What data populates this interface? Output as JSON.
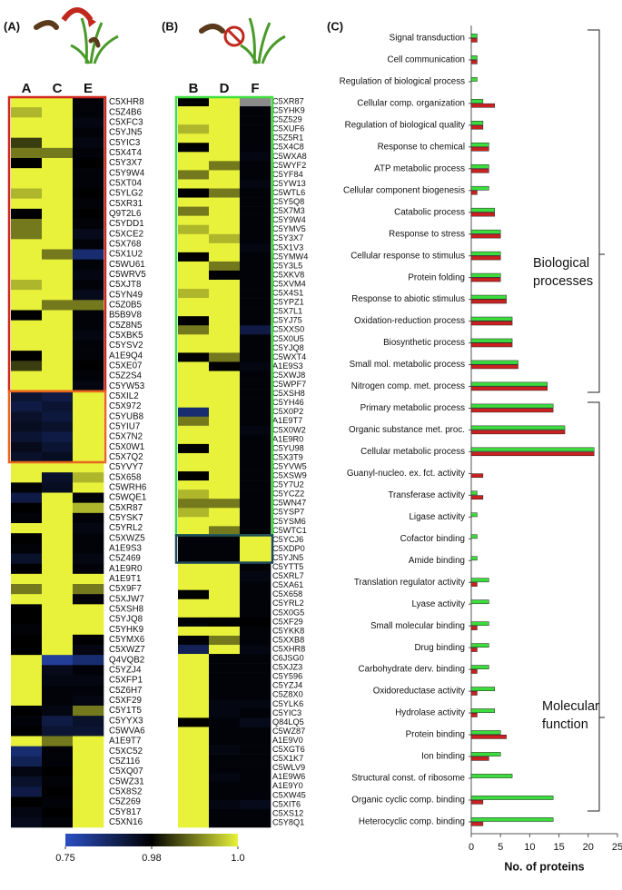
{
  "chart_data": [
    {
      "type": "heatmap",
      "panel": "(A)",
      "columns": [
        "A",
        "C",
        "E"
      ],
      "rows": [
        "C5XHR8",
        "C5Z4B6",
        "C5XFC3",
        "C5YJN5",
        "C5YIC3",
        "C5X4T4",
        "C5Y3X7",
        "C5Y9W4",
        "C5XT04",
        "C5YLG2",
        "C5XR31",
        "Q9T2L6",
        "C5YDD1",
        "C5XCE2",
        "C5X768",
        "C5X1U2",
        "C5WU61",
        "C5WRV5",
        "C5XJT8",
        "C5YN49",
        "C5Z0B5",
        "B5B9V8",
        "C5Z8N5",
        "C5XBK5",
        "C5YSV2",
        "A1E9Q4",
        "C5XE07",
        "C5Z2S4",
        "C5YW53",
        "C5XIL2",
        "C5X972",
        "C5YUB8",
        "C5YIU7",
        "C5X7N2",
        "C5X0W1",
        "C5X7Q2",
        "C5YVY7",
        "C5X658",
        "C5WRH6",
        "C5WQE1",
        "C5XR87",
        "C5YSK7",
        "C5YRL2",
        "C5XWZ5",
        "A1E9S3",
        "C5Z469",
        "A1E9R0",
        "A1E9T1",
        "C5X9F7",
        "C5XJW7",
        "C5XSH8",
        "C5YJQ8",
        "C5YHK9",
        "C5YMX6",
        "C5XWZ7",
        "Q4VQB2",
        "C5YZJ4",
        "C5XFP1",
        "C5Z6H7",
        "C5XF29",
        "C5Y1T5",
        "C5YYX3",
        "C5WVA6",
        "A1E9T7",
        "C5XC52",
        "C5Z116",
        "C5XQ07",
        "C5WZ31",
        "C5X8S2",
        "C5Z269",
        "C5Y817",
        "C5XN16"
      ],
      "values": [
        [
          1,
          0.995,
          1,
          1,
          0.985,
          0.99,
          0.98,
          1,
          1,
          0.995,
          1,
          0.98,
          0.99,
          0.99,
          1,
          1,
          1,
          1,
          0.995,
          1,
          1,
          0.98,
          1,
          1,
          1,
          0.98,
          0.985,
          1,
          1,
          0.92,
          0.9,
          0.93,
          0.94,
          0.92,
          0.95,
          0.93,
          1,
          1,
          0.97,
          0.9,
          0.98,
          0.97,
          1,
          0.98,
          0.97,
          0.93,
          0.98,
          1,
          0.99,
          1,
          0.98,
          0.98,
          0.97,
          0.98,
          0.98,
          1,
          1,
          1,
          1,
          1,
          0.98,
          0.97,
          0.98,
          1,
          0.85,
          0.88,
          0.96,
          0.93,
          0.9,
          0.98,
          0.96,
          0.95
        ],
        [
          1,
          1,
          1,
          1,
          1,
          0.99,
          1,
          1,
          1,
          1,
          1,
          1,
          1,
          1,
          1,
          0.99,
          1,
          1,
          1,
          1,
          0.99,
          1,
          1,
          1,
          1,
          1,
          1,
          1,
          1,
          0.9,
          0.92,
          0.91,
          0.93,
          0.9,
          0.92,
          0.94,
          1,
          0.93,
          0.94,
          1,
          1,
          1,
          1,
          1,
          1,
          1,
          1,
          1,
          1,
          1,
          1,
          1,
          1,
          1,
          1,
          0.8,
          0.95,
          0.96,
          0.97,
          0.97,
          0.96,
          0.9,
          0.92,
          0.99,
          0.97,
          0.97,
          0.98,
          0.97,
          0.98,
          0.97,
          0.98,
          0.97
        ],
        [
          0.97,
          0.97,
          0.96,
          0.97,
          0.96,
          0.97,
          0.98,
          0.97,
          0.97,
          0.98,
          0.97,
          0.98,
          0.97,
          0.95,
          0.97,
          0.85,
          0.97,
          0.96,
          0.97,
          0.95,
          0.99,
          0.97,
          0.97,
          0.96,
          0.97,
          0.97,
          0.98,
          0.97,
          0.96,
          1,
          1,
          1,
          1,
          1,
          1,
          1,
          1,
          0.995,
          1,
          0.97,
          0.995,
          0.97,
          0.96,
          0.97,
          0.97,
          0.96,
          0.97,
          1,
          0.99,
          0.97,
          1,
          1,
          1,
          0.98,
          0.96,
          0.85,
          0.97,
          0.96,
          0.97,
          0.96,
          0.99,
          0.93,
          0.92,
          1,
          1,
          1,
          1,
          1,
          1,
          1,
          1,
          1
        ]
      ],
      "colorbar": {
        "ticks": [
          0.75,
          0.98,
          {
            "value": 1,
            "label": "1.0"
          }
        ],
        "colors": [
          "#2b4fc4",
          "#000000",
          "#e8f23a"
        ]
      }
    },
    {
      "type": "heatmap",
      "panel": "(B)",
      "columns": [
        "B",
        "D",
        "F"
      ],
      "rows": [
        "C5XR87",
        "C5YHK9",
        "C5Z529",
        "C5XUF6",
        "C5Z5R1",
        "C5X4C8",
        "C5WXA8",
        "C5WYF2",
        "C5YF84",
        "C5YW13",
        "C5WTL6",
        "C5Y5Q8",
        "C5X7M3",
        "C5Y9W4",
        "C5YMV5",
        "C5Y3X7",
        "C5X1V3",
        "C5YMW4",
        "C5Y3L5",
        "C5XKV8",
        "C5XVM4",
        "C5X4S1",
        "C5YPZ1",
        "C5X7L1",
        "C5YJ75",
        "C5XXS0",
        "C5X0U5",
        "C5YJQ8",
        "C5WXT4",
        "A1E9S3",
        "C5XWJ8",
        "C5WPF7",
        "C5XSH8",
        "C5YH46",
        "C5X0P2",
        "A1E9T7",
        "C5X0W2",
        "A1E9R0",
        "C5YU98",
        "C5X3T9",
        "C5YVW5",
        "C5XSW9",
        "C5Y7U2",
        "C5YCZ2",
        "C5WN47",
        "C5YSP7",
        "C5YSM6",
        "C5WTC1",
        "C5YCJ6",
        "C5XDP0",
        "C5YJN5",
        "C5YTT5",
        "C5XRL7",
        "C5XA61",
        "C5X658",
        "C5YRL2",
        "C5X0G5",
        "C5XF29",
        "C5YKK8",
        "C5XXB8",
        "C5XHR8",
        "C6JSG0",
        "C5XJZ3",
        "C5Y596",
        "C5YZJ4",
        "C5Z8X0",
        "C5YLK6",
        "C5YIC3",
        "Q84LQ5",
        "C5WZ87",
        "A1E9V0",
        "C5XGT6",
        "C5X1K7",
        "C5WLV9",
        "A1E9W6",
        "A1E9Y0",
        "C5XW45",
        "C5XIT6",
        "C5XS12",
        "C5Y8Q1"
      ],
      "values": [
        [
          0.98,
          1,
          1,
          0.995,
          1,
          0.98,
          1,
          1,
          0.99,
          1,
          0.98,
          1,
          0.99,
          1,
          0.995,
          1,
          1,
          0.98,
          1,
          1,
          1,
          0.995,
          1,
          1,
          0.98,
          0.99,
          1,
          1,
          0.98,
          1,
          1,
          1,
          1,
          1,
          0.85,
          0.99,
          1,
          1,
          0.98,
          1,
          1,
          0.98,
          1,
          0.995,
          0.99,
          0.995,
          1,
          1,
          0.97,
          0.97,
          0.97,
          1,
          1,
          1,
          0.98,
          1,
          1,
          0.97,
          1,
          0.97,
          0.88,
          1,
          1,
          1,
          1,
          1,
          1,
          1,
          0.98,
          1,
          1,
          1,
          1,
          1,
          1,
          1,
          1,
          1,
          1,
          1
        ],
        [
          1,
          1,
          1,
          1,
          1,
          1,
          1,
          0.99,
          1,
          1,
          0.99,
          1,
          1,
          1,
          1,
          0.995,
          1,
          1,
          0.99,
          0.98,
          1,
          1,
          1,
          1,
          1,
          1,
          1,
          1,
          0.99,
          0.98,
          1,
          1,
          1,
          1,
          1,
          1,
          1,
          1,
          1,
          1,
          1,
          1,
          1,
          1,
          0.99,
          1,
          1,
          0.99,
          0.97,
          0.97,
          0.97,
          1,
          1,
          1,
          1,
          1,
          1,
          0.98,
          1,
          0.99,
          1,
          0.97,
          0.97,
          0.97,
          0.97,
          0.97,
          0.96,
          0.96,
          0.97,
          0.97,
          0.97,
          0.96,
          0.97,
          0.97,
          0.96,
          0.97,
          0.97,
          0.96,
          0.97,
          0.97
        ],
        [
          null,
          0.97,
          0.97,
          0.97,
          0.97,
          0.97,
          0.96,
          0.97,
          0.97,
          0.96,
          0.97,
          0.97,
          0.97,
          0.97,
          0.97,
          0.97,
          0.96,
          0.97,
          0.97,
          0.97,
          0.97,
          0.97,
          0.97,
          0.97,
          0.97,
          0.9,
          0.97,
          0.97,
          0.97,
          0.96,
          0.97,
          0.97,
          0.97,
          0.97,
          0.97,
          0.97,
          0.96,
          0.97,
          0.97,
          0.97,
          0.97,
          0.97,
          0.97,
          0.97,
          0.97,
          0.97,
          0.97,
          0.97,
          1,
          1,
          1,
          0.97,
          0.96,
          0.97,
          0.97,
          0.97,
          0.97,
          0.98,
          0.97,
          0.97,
          0.96,
          0.97,
          0.97,
          0.97,
          0.97,
          0.97,
          0.96,
          0.97,
          0.95,
          0.97,
          0.97,
          0.97,
          0.97,
          0.97,
          0.97,
          0.97,
          0.97,
          0.95,
          0.97,
          0.97
        ]
      ]
    },
    {
      "type": "bar",
      "orientation": "horizontal",
      "panel": "(C)",
      "categories": [
        "Signal transduction",
        "Cell communication",
        "Regulation of biological process",
        "Cellular comp. organization",
        "Regulation of biological quality",
        "Response to chemical",
        "ATP metabolic process",
        "Cellular component biogenesis",
        "Catabolic process",
        "Response to stress",
        "Cellular response to stimulus",
        "Protein folding",
        "Response to abiotic stimulus",
        "Oxidation-reduction process",
        "Biosynthetic process",
        "Small mol. metabolic process",
        "Nitrogen comp. met. process",
        "Primary metabolic process",
        "Organic substance met. proc.",
        "Cellular metabolic process",
        "Guanyl-nucleo. ex. fct. activity",
        "Transferase activity",
        "Ligase activity",
        "Cofactor binding",
        "Amide binding",
        "Translation regulator activity",
        "Lyase activity",
        "Small molecular binding",
        "Drug binding",
        "Carbohydrate derv. binding",
        "Oxidoreductase activity",
        "Hydrolase activity",
        "Protein binding",
        "Ion binding",
        "Structural const. of ribosome",
        "Organic cyclic comp. binding",
        "Heterocyclic comp. binding"
      ],
      "series": [
        {
          "color": "#3ddc3d",
          "values": [
            1,
            1,
            1,
            2,
            2,
            3,
            3,
            3,
            4,
            5,
            5,
            5,
            6,
            7,
            7,
            8,
            13,
            14,
            16,
            21,
            0,
            1,
            1,
            1,
            1,
            3,
            3,
            3,
            3,
            3,
            4,
            4,
            5,
            5,
            7,
            14,
            14
          ]
        },
        {
          "color": "#cc2020",
          "values": [
            1,
            1,
            0,
            4,
            2,
            3,
            3,
            1,
            4,
            5,
            5,
            5,
            6,
            7,
            7,
            8,
            13,
            14,
            16,
            21,
            2,
            2,
            0,
            0,
            0,
            1,
            0,
            1,
            1,
            1,
            1,
            1,
            6,
            3,
            0,
            2,
            2
          ]
        }
      ],
      "xlim": [
        0,
        25
      ],
      "xticks": [
        0,
        5,
        10,
        15,
        20,
        25
      ],
      "xlabel": "No. of proteins",
      "annotations": [
        [
          "Biological",
          "processes"
        ],
        [
          "Molecular",
          "function"
        ]
      ]
    }
  ]
}
